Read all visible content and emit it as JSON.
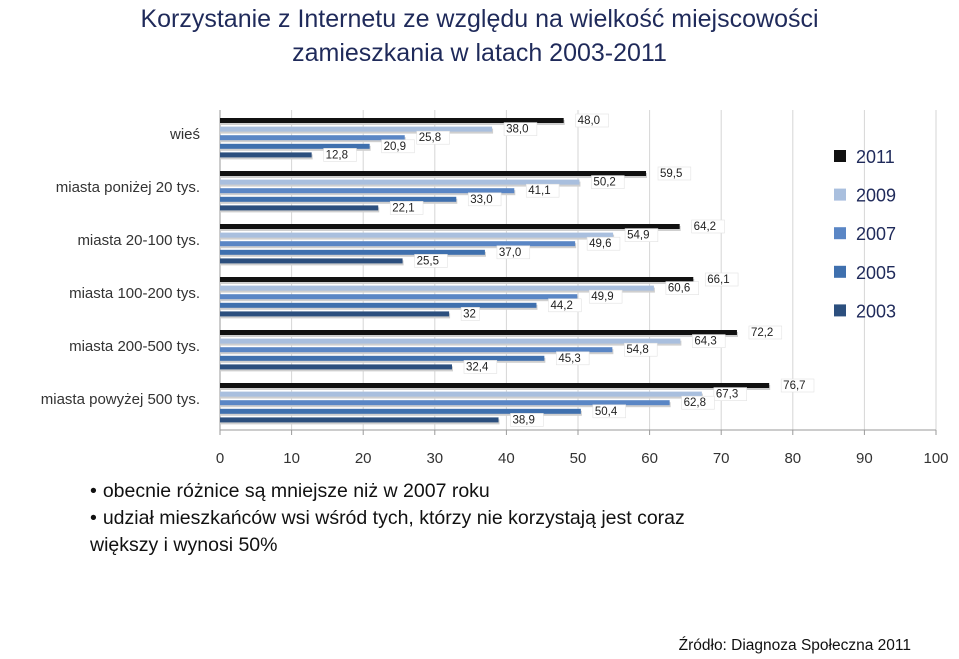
{
  "title": {
    "line1": "Korzystanie z Internetu ze względu na wielkość miejscowości",
    "line2": "zamieszkania w latach 2003-2011"
  },
  "chart_data": {
    "type": "bar",
    "orientation": "horizontal",
    "categories": [
      "wieś",
      "miasta poniżej 20 tys.",
      "miasta 20-100 tys.",
      "miasta 100-200 tys.",
      "miasta 200-500 tys.",
      "miasta powyżej 500 tys."
    ],
    "series": [
      {
        "name": "2011",
        "color": "#111111",
        "values": [
          48.0,
          59.5,
          64.2,
          66.1,
          72.2,
          76.7
        ],
        "labels": [
          "48,0",
          "59,5",
          "64,2",
          "66,1",
          "72,2",
          "76,7"
        ]
      },
      {
        "name": "2009",
        "color": "#a9bfde",
        "values": [
          38.0,
          50.2,
          54.9,
          60.6,
          64.3,
          67.3
        ],
        "labels": [
          "38,0",
          "50,2",
          "54,9",
          "60,6",
          "64,3",
          "67,3"
        ]
      },
      {
        "name": "2007",
        "color": "#5a86c5",
        "values": [
          25.8,
          41.1,
          49.6,
          49.9,
          54.8,
          62.8
        ],
        "labels": [
          "25,8",
          "41,1",
          "49,6",
          "49,9",
          "54,8",
          "62,8"
        ]
      },
      {
        "name": "2005",
        "color": "#3f70ae",
        "values": [
          20.9,
          33.0,
          37.0,
          44.2,
          45.3,
          50.4
        ],
        "labels": [
          "20,9",
          "33,0",
          "37,0",
          "44,2",
          "45,3",
          "50,4"
        ]
      },
      {
        "name": "2003",
        "color": "#2c4f7e",
        "values": [
          12.8,
          22.1,
          25.5,
          32,
          32.4,
          38.9
        ],
        "labels": [
          "12,8",
          "22,1",
          "25,5",
          "32",
          "32,4",
          "38,9"
        ]
      }
    ],
    "xlim": [
      0,
      100
    ],
    "ticks": [
      0,
      10,
      20,
      30,
      40,
      50,
      60,
      70,
      80,
      90,
      100
    ],
    "legend_position": "right",
    "grid": true
  },
  "bullets": [
    "obecnie różnice są mniejsze niż w 2007 roku",
    "udział mieszkańców wsi wśród tych, którzy nie korzystają jest coraz"
  ],
  "bullet_continuation": "większy i wynosi 50%",
  "source": "Źródło: Diagnoza Społeczna 2011"
}
